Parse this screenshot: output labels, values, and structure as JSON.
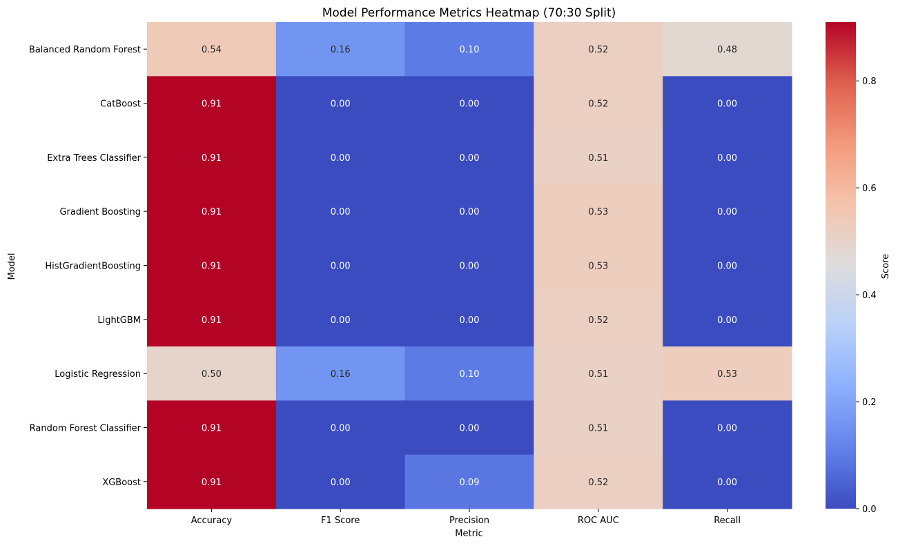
{
  "chart_data": {
    "type": "heatmap",
    "title": "Model Performance Metrics Heatmap (70:30 Split)",
    "xlabel": "Metric",
    "ylabel": "Model",
    "colorbar_label": "Score",
    "colormap": "coolwarm",
    "vmin": 0.0,
    "vmax": 0.91,
    "colorbar_ticks": [
      "0.0",
      "0.2",
      "0.4",
      "0.6",
      "0.8"
    ],
    "colorbar_tick_values": [
      0.0,
      0.2,
      0.4,
      0.6,
      0.8
    ],
    "x_categories": [
      "Accuracy",
      "F1 Score",
      "Precision",
      "ROC AUC",
      "Recall"
    ],
    "y_categories": [
      "Balanced Random Forest",
      "CatBoost",
      "Extra Trees Classifier",
      "Gradient Boosting",
      "HistGradientBoosting",
      "LightGBM",
      "Logistic Regression",
      "Random Forest Classifier",
      "XGBoost"
    ],
    "values": [
      [
        0.54,
        0.16,
        0.1,
        0.52,
        0.48
      ],
      [
        0.91,
        0.0,
        0.0,
        0.52,
        0.0
      ],
      [
        0.91,
        0.0,
        0.0,
        0.51,
        0.0
      ],
      [
        0.91,
        0.0,
        0.0,
        0.53,
        0.0
      ],
      [
        0.91,
        0.0,
        0.0,
        0.53,
        0.0
      ],
      [
        0.91,
        0.0,
        0.0,
        0.52,
        0.0
      ],
      [
        0.5,
        0.16,
        0.1,
        0.51,
        0.53
      ],
      [
        0.91,
        0.0,
        0.0,
        0.51,
        0.0
      ],
      [
        0.91,
        0.0,
        0.09,
        0.52,
        0.0
      ]
    ]
  }
}
